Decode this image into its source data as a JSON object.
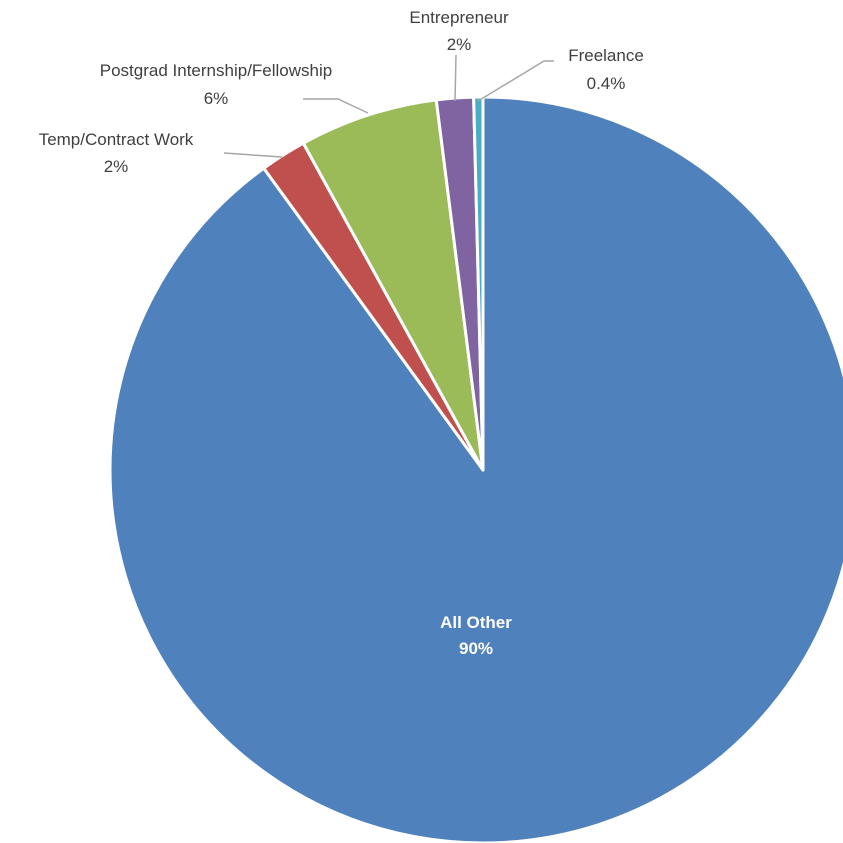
{
  "chart_data": {
    "type": "pie",
    "title": "",
    "start_angle_deg": 0,
    "direction": "clockwise",
    "legend": "none",
    "slices": [
      {
        "name": "All Other",
        "value": 90,
        "label": "90%",
        "color": "#4F81BD",
        "label_position": "inside"
      },
      {
        "name": "Temp/Contract Work",
        "value": 2,
        "label": "2%",
        "color": "#C0504D",
        "label_position": "outside"
      },
      {
        "name": "Postgrad Internship/Fellowship",
        "value": 6,
        "label": "6%",
        "color": "#9BBB59",
        "label_position": "outside"
      },
      {
        "name": "Entrepreneur",
        "value": 1.6,
        "label": "2%",
        "color": "#8064A2",
        "label_position": "outside"
      },
      {
        "name": "Freelance",
        "value": 0.4,
        "label": "0.4%",
        "color": "#4BACC6",
        "label_position": "outside"
      }
    ]
  }
}
